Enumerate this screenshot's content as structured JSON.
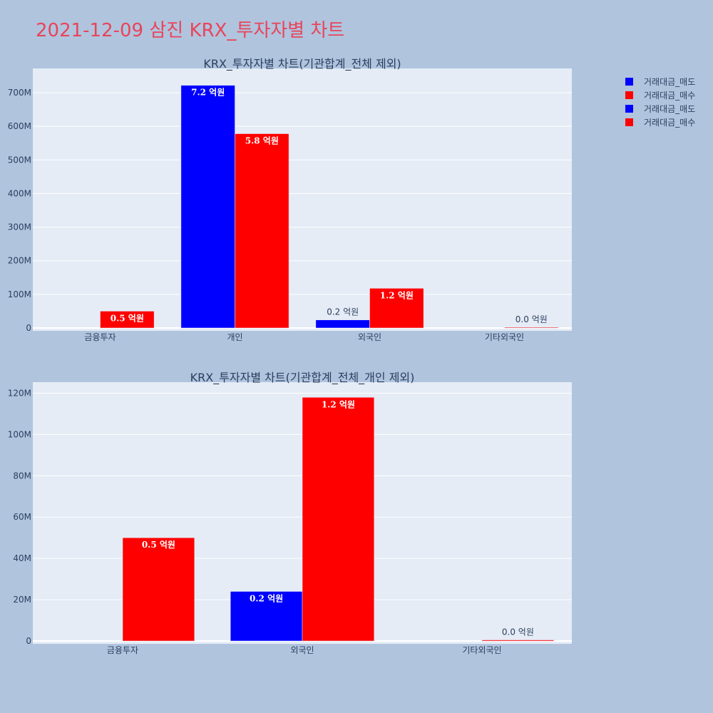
{
  "page": {
    "title": "2021-12-09 삼진 KRX_투자자별 차트",
    "background": "#b0c4de",
    "plot_background": "#e5ecf6",
    "title_color": "#e8455a"
  },
  "legend": {
    "placement": "top-right",
    "items": [
      {
        "label": "거래대금_매도",
        "color": "#0000ff"
      },
      {
        "label": "거래대금_매수",
        "color": "#ff0000"
      },
      {
        "label": "거래대금_매도",
        "color": "#0000ff"
      },
      {
        "label": "거래대금_매수",
        "color": "#ff0000"
      }
    ]
  },
  "chart_data": [
    {
      "type": "bar",
      "title": "KRX_투자자별 차트(기관합계_전체 제외)",
      "categories": [
        "금융투자",
        "개인",
        "외국인",
        "기타외국인"
      ],
      "series": [
        {
          "name": "거래대금_매도",
          "color": "#0000ff",
          "values": [
            0,
            722000000,
            24000000,
            0
          ],
          "labels": [
            "",
            "7.2 억원",
            "0.2 억원",
            ""
          ],
          "label_inside": [
            false,
            true,
            false,
            false
          ]
        },
        {
          "name": "거래대금_매수",
          "color": "#ff0000",
          "values": [
            50000000,
            578000000,
            118000000,
            500000
          ],
          "labels": [
            "0.5 억원",
            "5.8 억원",
            "1.2 억원",
            "0.0 억원"
          ],
          "label_inside": [
            true,
            true,
            true,
            false
          ]
        }
      ],
      "ylim": [
        0,
        770000000
      ],
      "yticks": [
        0,
        100000000,
        200000000,
        300000000,
        400000000,
        500000000,
        600000000,
        700000000
      ],
      "ytick_labels": [
        "0",
        "100M",
        "200M",
        "300M",
        "400M",
        "500M",
        "600M",
        "700M"
      ],
      "grid": true
    },
    {
      "type": "bar",
      "title": "KRX_투자자별 차트(기관합계_전체_개인 제외)",
      "categories": [
        "금융투자",
        "외국인",
        "기타외국인"
      ],
      "series": [
        {
          "name": "거래대금_매도",
          "color": "#0000ff",
          "values": [
            0,
            24000000,
            0
          ],
          "labels": [
            "",
            "0.2 억원",
            ""
          ],
          "label_inside": [
            false,
            true,
            false
          ]
        },
        {
          "name": "거래대금_매수",
          "color": "#ff0000",
          "values": [
            50000000,
            118000000,
            500000
          ],
          "labels": [
            "0.5 억원",
            "1.2 억원",
            "0.0 억원"
          ],
          "label_inside": [
            true,
            true,
            false
          ]
        }
      ],
      "ylim": [
        0,
        125000000
      ],
      "yticks": [
        0,
        20000000,
        40000000,
        60000000,
        80000000,
        100000000,
        120000000
      ],
      "ytick_labels": [
        "0",
        "20M",
        "40M",
        "60M",
        "80M",
        "100M",
        "120M"
      ],
      "grid": true
    }
  ]
}
